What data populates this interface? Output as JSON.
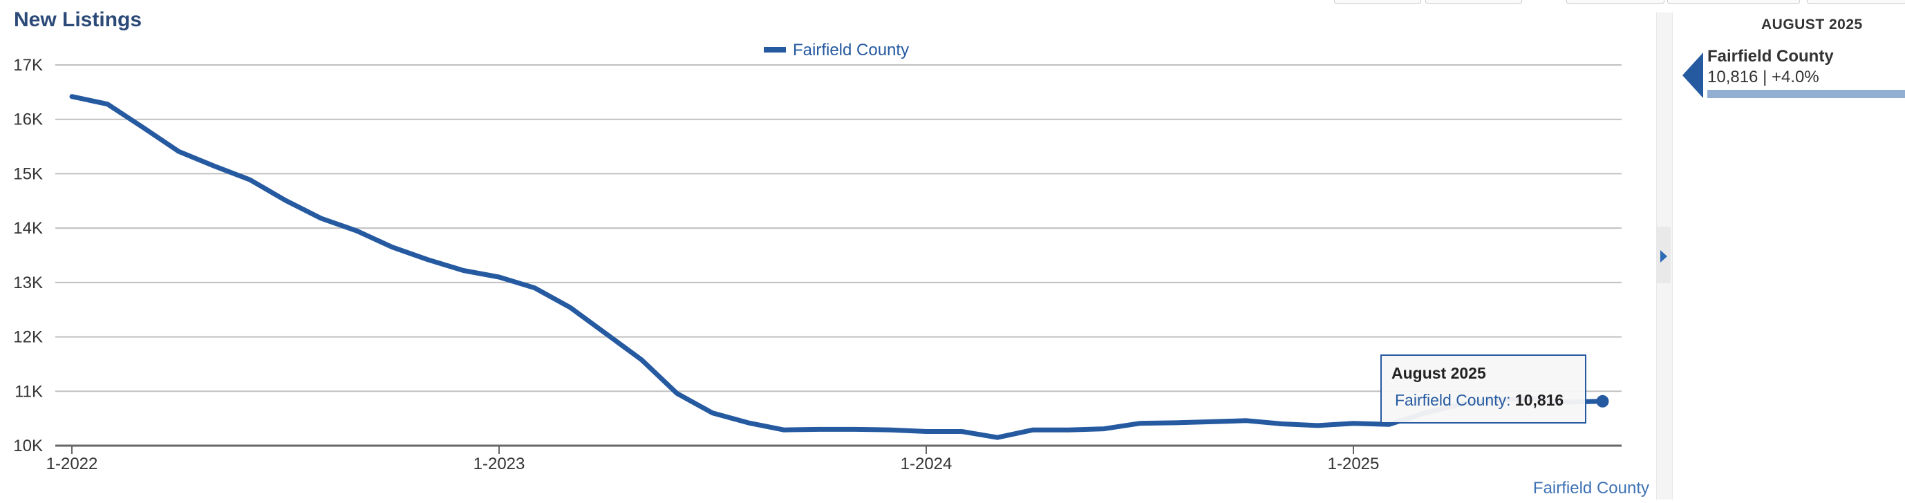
{
  "title": "New Listings",
  "chart_data": {
    "type": "line",
    "x": [
      "2022-01",
      "2022-02",
      "2022-03",
      "2022-04",
      "2022-05",
      "2022-06",
      "2022-07",
      "2022-08",
      "2022-09",
      "2022-10",
      "2022-11",
      "2022-12",
      "2023-01",
      "2023-02",
      "2023-03",
      "2023-04",
      "2023-05",
      "2023-06",
      "2023-07",
      "2023-08",
      "2023-09",
      "2023-10",
      "2023-11",
      "2023-12",
      "2024-01",
      "2024-02",
      "2024-03",
      "2024-04",
      "2024-05",
      "2024-06",
      "2024-07",
      "2024-08",
      "2024-09",
      "2024-10",
      "2024-11",
      "2024-12",
      "2025-01",
      "2025-02",
      "2025-03",
      "2025-04",
      "2025-05",
      "2025-06",
      "2025-07",
      "2025-08"
    ],
    "series": [
      {
        "name": "Fairfield County",
        "color": "#2559a0",
        "values": [
          16420,
          16280,
          15850,
          15410,
          15140,
          14890,
          14510,
          14180,
          13950,
          13650,
          13420,
          13220,
          13100,
          12900,
          12540,
          12060,
          11580,
          10960,
          10600,
          10420,
          10290,
          10300,
          10300,
          10290,
          10260,
          10260,
          10150,
          10290,
          10290,
          10310,
          10410,
          10420,
          10440,
          10460,
          10400,
          10370,
          10410,
          10390,
          10600,
          10760,
          10840,
          10870,
          10800,
          10816
        ]
      }
    ],
    "xticks": [
      {
        "label": "1-2022",
        "x": "2022-01"
      },
      {
        "label": "1-2023",
        "x": "2023-01"
      },
      {
        "label": "1-2024",
        "x": "2024-01"
      },
      {
        "label": "1-2025",
        "x": "2025-01"
      }
    ],
    "yticks": [
      {
        "label": "10K",
        "value": 10000
      },
      {
        "label": "11K",
        "value": 11000
      },
      {
        "label": "12K",
        "value": 12000
      },
      {
        "label": "13K",
        "value": 13000
      },
      {
        "label": "14K",
        "value": 14000
      },
      {
        "label": "15K",
        "value": 15000
      },
      {
        "label": "16K",
        "value": 16000
      },
      {
        "label": "17K",
        "value": 17000
      }
    ],
    "ylim": [
      10000,
      17000
    ],
    "grid": true,
    "legend": "top-center",
    "legend_label": "Fairfield County",
    "credit": "Fairfield County",
    "xlabel": "",
    "ylabel": ""
  },
  "tooltip": {
    "title": "August 2025",
    "series_label": "Fairfield County:",
    "value": "10,816"
  },
  "side_panel": {
    "month": "AUGUST 2025",
    "name": "Fairfield County",
    "stats": "10,816 | +4.0%",
    "marker_color": "#2559a0",
    "bar_color": "#93aed3"
  }
}
